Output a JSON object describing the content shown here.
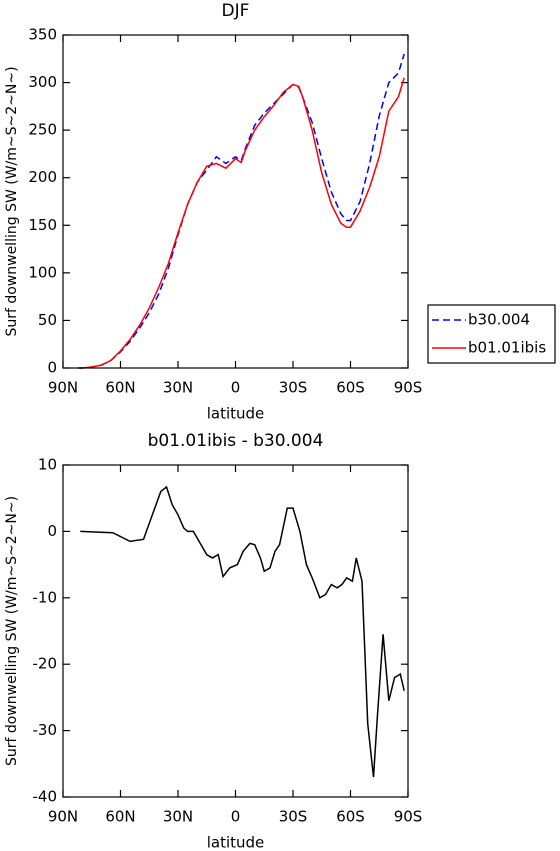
{
  "chart_data": [
    {
      "type": "line",
      "title": "DJF",
      "xlabel": "latitude",
      "ylabel": "Surf downwelling SW (W/m~S~2~N~)",
      "xlim": [
        90,
        -90
      ],
      "xticks": [
        {
          "value": 90,
          "label": "90N"
        },
        {
          "value": 60,
          "label": "60N"
        },
        {
          "value": 30,
          "label": "30N"
        },
        0,
        {
          "value": -30,
          "label": "30S"
        },
        {
          "value": -60,
          "label": "60S"
        },
        {
          "value": -90,
          "label": "90S"
        }
      ],
      "ylim": [
        0,
        350
      ],
      "yticks": [
        0,
        50,
        100,
        150,
        200,
        250,
        300,
        350
      ],
      "legend": "right",
      "x": [
        82,
        80,
        75,
        70,
        65,
        60,
        55,
        50,
        45,
        40,
        35,
        30,
        25,
        20,
        15,
        10,
        5,
        0,
        -3,
        -5,
        -10,
        -15,
        -20,
        -25,
        -30,
        -33,
        -35,
        -40,
        -45,
        -50,
        -55,
        -58,
        -60,
        -65,
        -70,
        -75,
        -80,
        -85,
        -88
      ],
      "series": [
        {
          "name": "b30.004",
          "color": "#0000ff",
          "dash": true,
          "values": [
            0,
            0,
            1,
            3,
            8,
            17,
            28,
            42,
            58,
            78,
            105,
            140,
            172,
            195,
            208,
            222,
            215,
            222,
            218,
            230,
            255,
            268,
            278,
            288,
            298,
            295,
            285,
            258,
            220,
            185,
            162,
            155,
            155,
            175,
            215,
            265,
            300,
            310,
            330
          ]
        },
        {
          "name": "b01.01ibis",
          "color": "#ff0000",
          "dash": false,
          "values": [
            0,
            0,
            1,
            3,
            8,
            18,
            30,
            45,
            63,
            85,
            110,
            142,
            172,
            195,
            212,
            215,
            210,
            220,
            216,
            228,
            250,
            264,
            276,
            290,
            298,
            296,
            285,
            250,
            205,
            172,
            152,
            148,
            148,
            165,
            190,
            222,
            270,
            285,
            305
          ]
        }
      ]
    },
    {
      "type": "line",
      "title": "b01.01ibis - b30.004",
      "xlabel": "latitude",
      "ylabel": "Surf downwelling SW (W/m~S~2~N~)",
      "xlim": [
        90,
        -90
      ],
      "xticks": [
        {
          "value": 90,
          "label": "90N"
        },
        {
          "value": 60,
          "label": "60N"
        },
        {
          "value": 30,
          "label": "30N"
        },
        0,
        {
          "value": -30,
          "label": "30S"
        },
        {
          "value": -60,
          "label": "60S"
        },
        {
          "value": -90,
          "label": "90S"
        }
      ],
      "ylim": [
        -40,
        10
      ],
      "yticks": [
        -40,
        -30,
        -20,
        -10,
        0,
        10
      ],
      "x": [
        81,
        64,
        55,
        48,
        44,
        39,
        36,
        33,
        30,
        27,
        25,
        22,
        19,
        15,
        12,
        9,
        6.5,
        3,
        -1,
        -4,
        -7.5,
        -10,
        -13,
        -15,
        -18,
        -20.6,
        -23,
        -27,
        -30,
        -33.6,
        -37,
        -40,
        -44,
        -47,
        -50,
        -53,
        -55.5,
        -58,
        -61,
        -63,
        -66,
        -69,
        -72,
        -74,
        -77,
        -80,
        -83,
        -86,
        -88
      ],
      "series": [
        {
          "color": "#000000",
          "dash": false,
          "values": [
            0,
            -0.2,
            -1.5,
            -1.2,
            2,
            6,
            6.7,
            4,
            2.5,
            0.5,
            0,
            0,
            -1.5,
            -3.5,
            -4,
            -3.5,
            -6.8,
            -5.5,
            -5,
            -3,
            -1.8,
            -2,
            -4,
            -6,
            -5.5,
            -3,
            -2,
            3.5,
            3.5,
            0,
            -5,
            -7,
            -10,
            -9.5,
            -8,
            -8.5,
            -8,
            -7,
            -7.5,
            -4,
            -7.5,
            -29,
            -37,
            -28,
            -15.5,
            -25.5,
            -22,
            -21.5,
            -24
          ]
        }
      ]
    }
  ]
}
